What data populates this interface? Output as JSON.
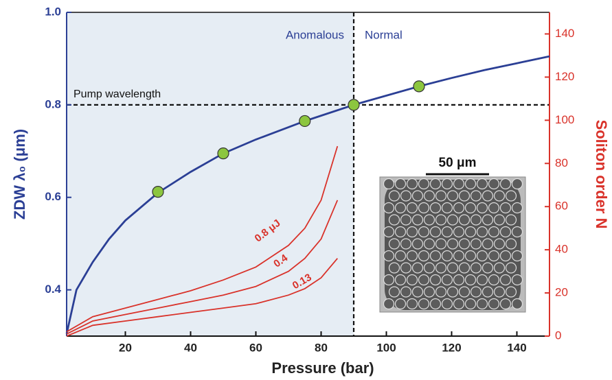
{
  "chart_data": {
    "type": "line",
    "x_label": "Pressure (bar)",
    "y_label": "ZDW λ₀ (μm)",
    "y2_label": "Soliton order N",
    "region_labels": {
      "left": "Anomalous",
      "right": "Normal"
    },
    "pump_label": "Pump wavelength",
    "scale_label": "50 μm",
    "vline": 90,
    "hline": 0.8,
    "shade_color": "#e6edf4",
    "xlim": [
      2,
      150
    ],
    "xticks": [
      20,
      40,
      60,
      80,
      100,
      120,
      140
    ],
    "ylim": [
      0.3,
      1.0
    ],
    "yticks": [
      0.4,
      0.6,
      0.8,
      {
        "value": 1,
        "label": "1.0"
      }
    ],
    "y2lim": [
      0,
      150
    ],
    "y2ticks": [
      0,
      20,
      40,
      60,
      80,
      100,
      120,
      140
    ],
    "series": [
      {
        "color": "#2b3f95",
        "kind": "line",
        "x": [
          2,
          5,
          10,
          15,
          20,
          30,
          40,
          50,
          60,
          75,
          90,
          100,
          110,
          120,
          130,
          140,
          150
        ],
        "values": [
          0.305,
          0.4,
          0.46,
          0.51,
          0.55,
          0.61,
          0.655,
          0.695,
          0.725,
          0.765,
          0.8,
          0.82,
          0.84,
          0.858,
          0.875,
          0.89,
          0.905
        ]
      },
      {
        "color": "#8cc63f",
        "kind": "points",
        "x": [
          30,
          50,
          75,
          90,
          110
        ],
        "values": [
          0.612,
          0.695,
          0.765,
          0.8,
          0.84
        ]
      },
      {
        "name": "0.8 μJ",
        "color": "#d9322a",
        "kind": "line",
        "axis": "y2",
        "x": [
          2,
          10,
          20,
          30,
          40,
          50,
          60,
          70,
          75,
          80,
          85
        ],
        "values": [
          2,
          9,
          13,
          17,
          21,
          26,
          32,
          42,
          50,
          63,
          88
        ]
      },
      {
        "name": "0.4",
        "color": "#d9322a",
        "kind": "line",
        "axis": "y2",
        "x": [
          2,
          10,
          20,
          30,
          40,
          50,
          60,
          70,
          75,
          80,
          85
        ],
        "values": [
          1,
          7,
          10,
          13,
          16,
          19,
          23,
          30,
          36,
          45,
          63
        ]
      },
      {
        "name": "0.13",
        "color": "#d9322a",
        "kind": "line",
        "axis": "y2",
        "x": [
          2,
          10,
          20,
          30,
          40,
          50,
          60,
          70,
          75,
          80,
          85
        ],
        "values": [
          0,
          5,
          7,
          9,
          11,
          13,
          15,
          19,
          22,
          27,
          36
        ]
      }
    ]
  }
}
